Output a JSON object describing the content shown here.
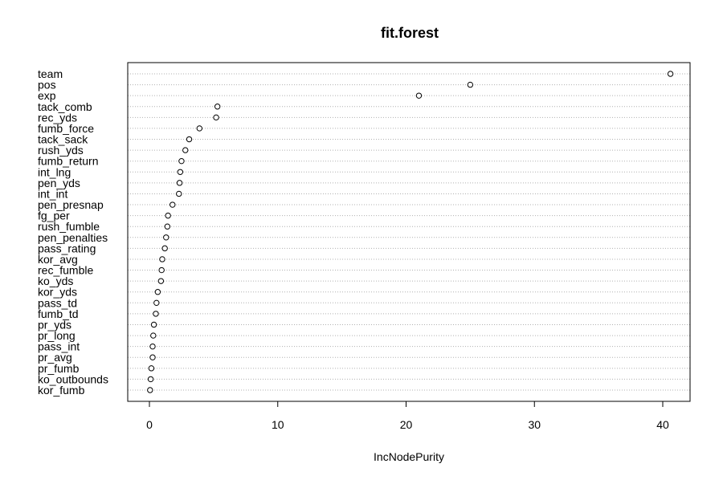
{
  "chart_data": {
    "type": "dotchart",
    "title": "fit.forest",
    "xlabel": "IncNodePurity",
    "ylabel": "",
    "xlim": [
      0,
      42
    ],
    "xticks": [
      0,
      10,
      20,
      30,
      40
    ],
    "grid": "dotted horizontal",
    "legend": "none",
    "categories": [
      "team",
      "pos",
      "exp",
      "tack_comb",
      "rec_yds",
      "fumb_force",
      "tack_sack",
      "rush_yds",
      "fumb_return",
      "int_lng",
      "pen_yds",
      "int_int",
      "pen_presnap",
      "fg_per",
      "rush_fumble",
      "pen_penalties",
      "pass_rating",
      "kor_avg",
      "rec_fumble",
      "ko_yds",
      "kor_yds",
      "pass_td",
      "fumb_td",
      "pr_yds",
      "pr_long",
      "pass_int",
      "pr_avg",
      "pr_fumb",
      "ko_outbounds",
      "kor_fumb"
    ],
    "values": [
      40.6,
      25.0,
      21.0,
      5.3,
      5.2,
      3.9,
      3.1,
      2.8,
      2.5,
      2.4,
      2.35,
      2.3,
      1.8,
      1.45,
      1.4,
      1.3,
      1.2,
      1.0,
      0.95,
      0.9,
      0.65,
      0.55,
      0.5,
      0.35,
      0.3,
      0.25,
      0.25,
      0.15,
      0.1,
      0.05
    ]
  }
}
